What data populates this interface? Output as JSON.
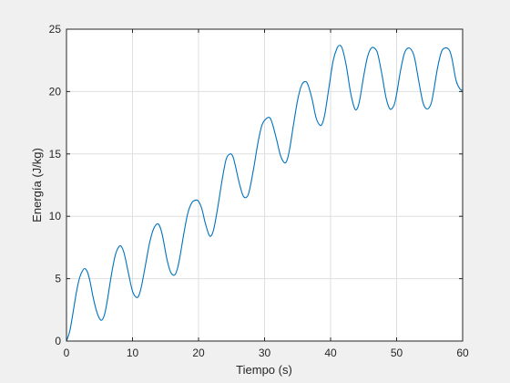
{
  "chart_data": {
    "type": "line",
    "xlabel": "Tiempo (s)",
    "ylabel": "Energía (J/kg)",
    "xlim": [
      0,
      60
    ],
    "ylim": [
      0,
      25
    ],
    "grid": true,
    "x_ticks": [
      0,
      10,
      20,
      30,
      40,
      50,
      60
    ],
    "y_ticks": [
      0,
      5,
      10,
      15,
      20,
      25
    ],
    "line_color": "#0072bd",
    "series": [
      {
        "x": [
          0,
          0.5,
          1,
          1.5,
          2,
          2.5,
          2.8,
          3.2,
          3.6,
          4.0,
          4.5,
          5.0,
          5.4,
          5.8,
          6.2,
          6.8,
          7.4,
          8.0,
          8.4,
          8.8,
          9.4,
          10.0,
          10.6,
          11.0,
          11.4,
          12.0,
          12.6,
          13.2,
          13.8,
          14.2,
          14.6,
          15.2,
          15.8,
          16.4,
          16.8,
          17.2,
          17.8,
          18.4,
          19.0,
          19.6,
          20.0,
          20.5,
          21.0,
          21.6,
          22.0,
          22.4,
          23.0,
          23.6,
          24.2,
          24.8,
          25.2,
          25.6,
          26.2,
          26.8,
          27.4,
          27.8,
          28.4,
          29.0,
          29.6,
          30.2,
          30.8,
          31.2,
          31.8,
          32.4,
          33.0,
          33.4,
          33.8,
          34.4,
          35.0,
          35.6,
          36.2,
          36.6,
          37.2,
          37.8,
          38.4,
          38.8,
          39.2,
          39.8,
          40.4,
          41.0,
          41.4,
          41.8,
          42.4,
          43.0,
          43.6,
          44.0,
          44.4,
          45.0,
          45.6,
          46.2,
          46.8,
          47.2,
          47.8,
          48.4,
          49.0,
          49.6,
          50.0,
          50.6,
          51.2,
          51.8,
          52.4,
          52.8,
          53.4,
          54.0,
          54.6,
          55.2,
          55.6,
          56.2,
          56.8,
          57.4,
          58.0,
          58.4,
          59.0,
          59.6,
          60.0
        ],
        "y": [
          0,
          0.8,
          2.3,
          3.9,
          5.1,
          5.7,
          5.8,
          5.5,
          4.7,
          3.6,
          2.5,
          1.8,
          1.7,
          2.2,
          3.3,
          5.3,
          6.9,
          7.6,
          7.5,
          6.9,
          5.4,
          4.0,
          3.5,
          3.7,
          4.5,
          6.2,
          7.9,
          9.0,
          9.4,
          9.1,
          8.3,
          6.6,
          5.5,
          5.3,
          5.8,
          6.8,
          8.7,
          10.3,
          11.1,
          11.3,
          11.2,
          10.6,
          9.5,
          8.5,
          8.5,
          9.2,
          11.0,
          13.0,
          14.6,
          15.0,
          14.8,
          14.0,
          12.6,
          11.6,
          11.6,
          12.3,
          14.0,
          15.9,
          17.3,
          17.8,
          17.9,
          17.4,
          16.2,
          14.9,
          14.3,
          14.5,
          15.4,
          17.4,
          19.3,
          20.5,
          20.8,
          20.5,
          19.4,
          17.9,
          17.3,
          17.5,
          18.4,
          20.5,
          22.5,
          23.5,
          23.7,
          23.4,
          22.0,
          20.0,
          18.7,
          18.6,
          19.3,
          21.2,
          22.8,
          23.5,
          23.4,
          22.9,
          21.3,
          19.5,
          18.6,
          18.9,
          19.8,
          21.7,
          23.1,
          23.5,
          23.2,
          22.5,
          20.7,
          19.1,
          18.6,
          19.0,
          20.0,
          21.9,
          23.2,
          23.5,
          23.3,
          22.6,
          20.9,
          20.2,
          20.1
        ]
      }
    ]
  }
}
